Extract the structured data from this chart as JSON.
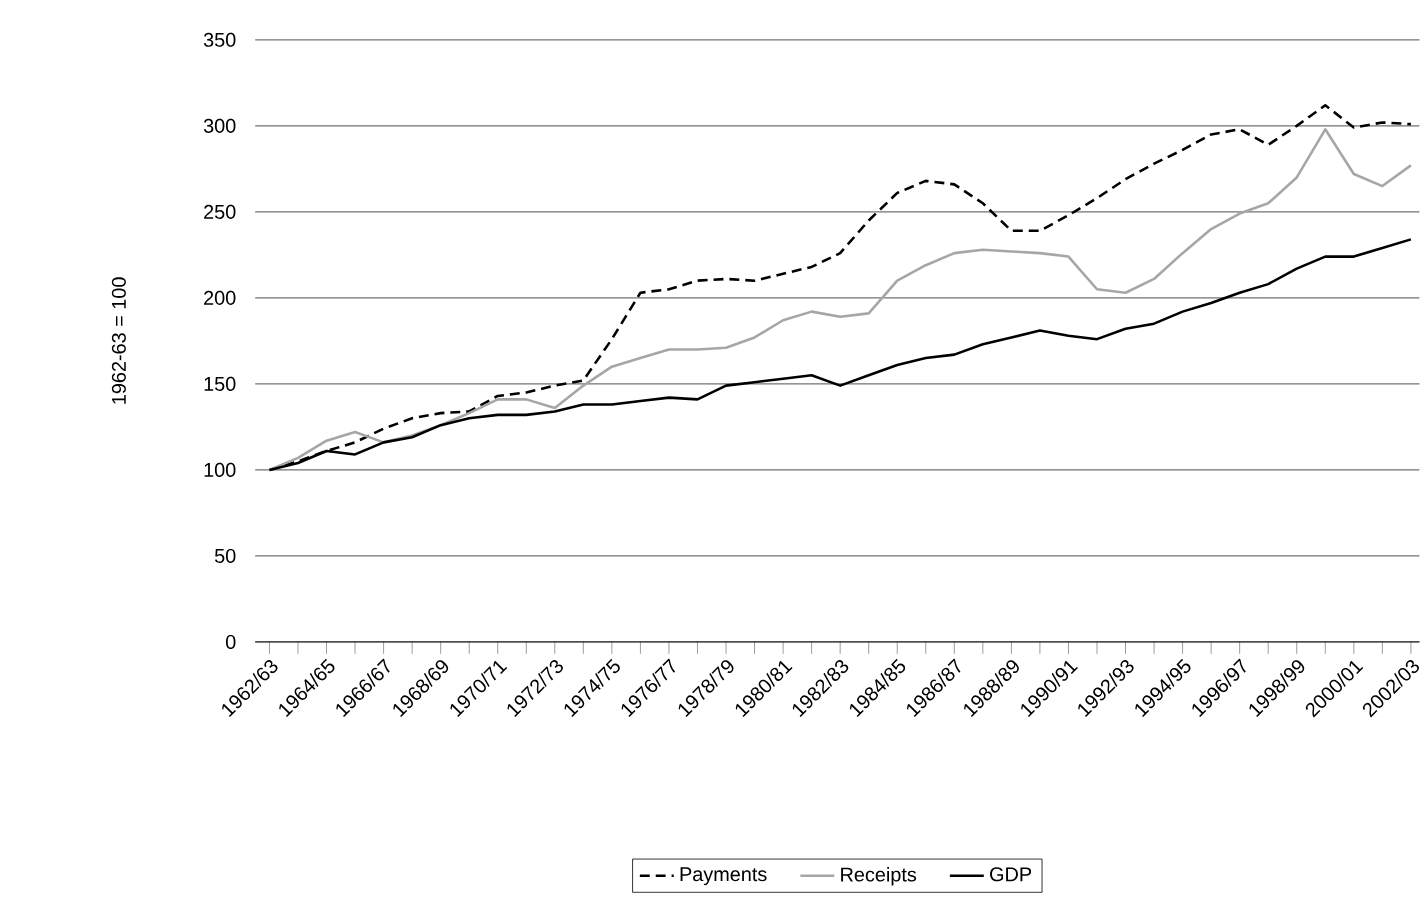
{
  "chart_data": {
    "type": "line",
    "ylabel": "1962-63 = 100",
    "categories": [
      "1962/63",
      null,
      "1964/65",
      null,
      "1966/67",
      null,
      "1968/69",
      null,
      "1970/71",
      null,
      "1972/73",
      null,
      "1974/75",
      null,
      "1976/77",
      null,
      "1978/79",
      null,
      "1980/81",
      null,
      "1982/83",
      null,
      "1984/85",
      null,
      "1986/87",
      null,
      "1988/89",
      null,
      "1990/91",
      null,
      "1992/93",
      null,
      "1994/95",
      null,
      "1996/97",
      null,
      "1998/99",
      null,
      "2000/01",
      null,
      "2002/03"
    ],
    "series": [
      {
        "name": "Payments",
        "color": "#000000",
        "line_style": "dashed",
        "values": [
          100,
          105,
          111,
          116,
          124,
          130,
          133,
          134,
          143,
          145,
          149,
          152,
          176,
          203,
          205,
          210,
          211,
          210,
          214,
          218,
          226,
          245,
          261,
          268,
          266,
          255,
          239,
          239,
          248,
          258,
          269,
          278,
          286,
          295,
          298,
          289,
          300,
          312,
          299,
          302,
          301
        ]
      },
      {
        "name": "Receipts",
        "color": "#a6a6a6",
        "line_style": "solid",
        "values": [
          100,
          107,
          117,
          122,
          116,
          120,
          126,
          133,
          141,
          141,
          136,
          149,
          160,
          165,
          170,
          170,
          171,
          177,
          187,
          192,
          189,
          191,
          210,
          219,
          226,
          228,
          227,
          226,
          224,
          205,
          203,
          211,
          226,
          240,
          249,
          255,
          270,
          298,
          272,
          265,
          277
        ]
      },
      {
        "name": "GDP",
        "color": "#000000",
        "line_style": "solid",
        "values": [
          100,
          104,
          111,
          109,
          116,
          119,
          126,
          130,
          132,
          132,
          134,
          138,
          138,
          140,
          142,
          141,
          149,
          151,
          153,
          155,
          149,
          155,
          161,
          165,
          167,
          173,
          177,
          181,
          178,
          176,
          182,
          185,
          192,
          197,
          203,
          208,
          217,
          224,
          224,
          229,
          234
        ]
      }
    ],
    "ylim": [
      0,
      350
    ],
    "yticks": [
      0,
      50,
      100,
      150,
      200,
      250,
      300,
      350
    ],
    "grid": "y",
    "legend": "bottom",
    "marker": "none"
  }
}
